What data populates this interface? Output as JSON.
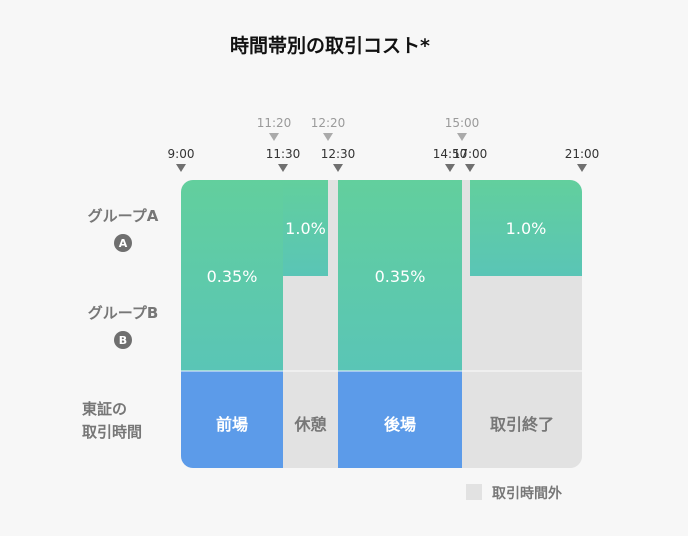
{
  "chart_data": {
    "type": "timeline",
    "title": "時間帯別の取引コスト*",
    "row_labels": {
      "group_a": "グループA",
      "group_a_badge": "A",
      "group_b": "グループB",
      "group_b_badge": "B",
      "session_line1": "東証の",
      "session_line2": "取引時間"
    },
    "time_markers": [
      {
        "label": "9:00",
        "time": "9:00",
        "tier": "lower"
      },
      {
        "label": "11:20",
        "time": "11:20",
        "tier": "upper"
      },
      {
        "label": "11:30",
        "time": "11:30",
        "tier": "lower"
      },
      {
        "label": "12:20",
        "time": "12:20",
        "tier": "upper"
      },
      {
        "label": "12:30",
        "time": "12:30",
        "tier": "lower"
      },
      {
        "label": "14:50",
        "time": "14:50",
        "tier": "lower"
      },
      {
        "label": "15:00",
        "time": "15:00",
        "tier": "upper"
      },
      {
        "label": "17:00",
        "time": "17:00",
        "tier": "lower"
      },
      {
        "label": "21:00",
        "time": "21:00",
        "tier": "lower"
      }
    ],
    "cost_blocks": [
      {
        "start": "9:00",
        "end": "11:30",
        "groups": [
          "A",
          "B"
        ],
        "label": "0.35%"
      },
      {
        "start": "11:30",
        "end": "12:20",
        "groups": [
          "A"
        ],
        "label": "1.0%"
      },
      {
        "start": "12:30",
        "end": "15:00",
        "groups": [
          "A",
          "B"
        ],
        "label": "0.35%"
      },
      {
        "start": "17:00",
        "end": "21:00",
        "groups": [
          "A"
        ],
        "label": "1.0%"
      }
    ],
    "sessions": [
      {
        "start": "9:00",
        "end": "11:30",
        "label": "前場",
        "state": "open"
      },
      {
        "start": "11:30",
        "end": "12:30",
        "label": "休憩",
        "state": "closed"
      },
      {
        "start": "12:30",
        "end": "15:00",
        "label": "後場",
        "state": "open"
      },
      {
        "start": "15:00",
        "end": "21:00",
        "label": "取引終了",
        "state": "closed"
      }
    ],
    "legend": {
      "label": "取引時間外"
    },
    "colors": {
      "cost_top": "#62cf9d",
      "cost_bottom": "#5ac5b6",
      "session_open": "#5c9be9",
      "outside": "#e2e2e2",
      "closed_text": "#777777",
      "open_text": "#ffffff"
    }
  }
}
